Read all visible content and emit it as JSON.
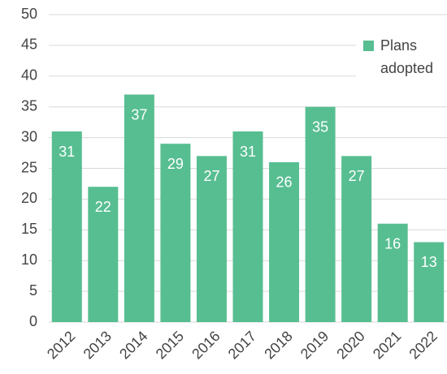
{
  "chart_data": {
    "type": "bar",
    "categories": [
      "2012",
      "2013",
      "2014",
      "2015",
      "2016",
      "2017",
      "2018",
      "2019",
      "2020",
      "2021",
      "2022"
    ],
    "series": [
      {
        "name": "Plans adopted",
        "color": "#57be91",
        "values": [
          31,
          22,
          37,
          29,
          27,
          31,
          26,
          35,
          27,
          16,
          13
        ]
      }
    ],
    "ylim": [
      0,
      50
    ],
    "yticks": [
      0,
      5,
      10,
      15,
      20,
      25,
      30,
      35,
      40,
      45,
      50
    ],
    "grid": true,
    "legend": "upper right"
  }
}
